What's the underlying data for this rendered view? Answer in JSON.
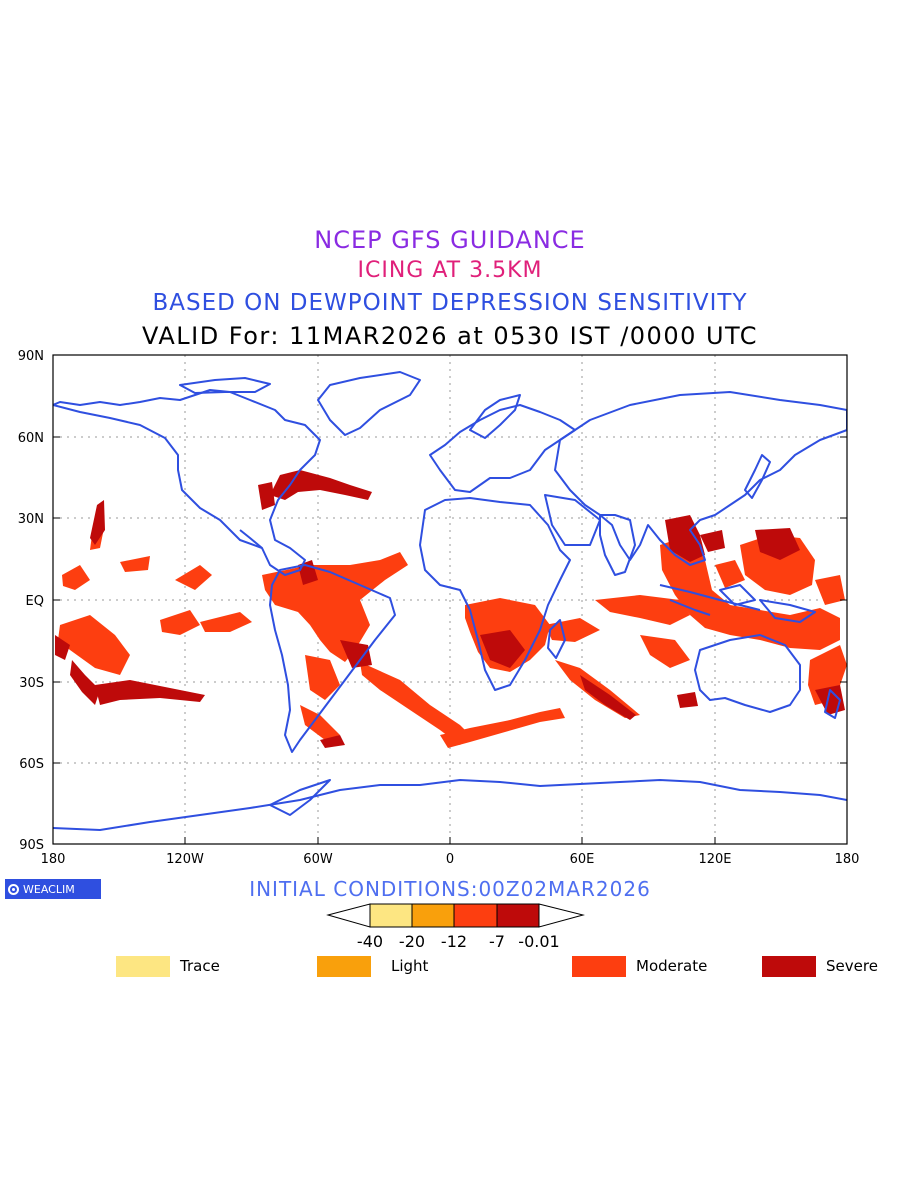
{
  "titles": {
    "line1": "NCEP GFS GUIDANCE",
    "line2": "ICING AT 3.5KM",
    "line3": "BASED ON DEWPOINT DEPRESSION SENSITIVITY",
    "line4": "VALID For: 11MAR2026 at 0530 IST /0000 UTC"
  },
  "map": {
    "lat_labels": [
      "90N",
      "60N",
      "30N",
      "EQ",
      "30S",
      "60S",
      "90S"
    ],
    "lon_labels": [
      "180",
      "120W",
      "60W",
      "0",
      "60E",
      "120E",
      "180"
    ],
    "coastline_color": "#2f4fe0",
    "gridline_style": "dotted"
  },
  "initial_conditions": "INITIAL CONDITIONS:00Z02MAR2026",
  "logo": {
    "text": "WEACLIM",
    "icon": "weaclim-logo-icon"
  },
  "colorbar": {
    "tick_labels": [
      "-40",
      "-20",
      "-12",
      "-7",
      "-0.01"
    ],
    "colors": [
      "#fde682",
      "#f9a00c",
      "#fd3e10",
      "#be0a0a"
    ]
  },
  "legend": [
    {
      "label": "Trace",
      "color": "#fde682"
    },
    {
      "label": "Light",
      "color": "#f9a00c"
    },
    {
      "label": "Moderate",
      "color": "#fd3e10"
    },
    {
      "label": "Severe",
      "color": "#be0a0a"
    }
  ]
}
